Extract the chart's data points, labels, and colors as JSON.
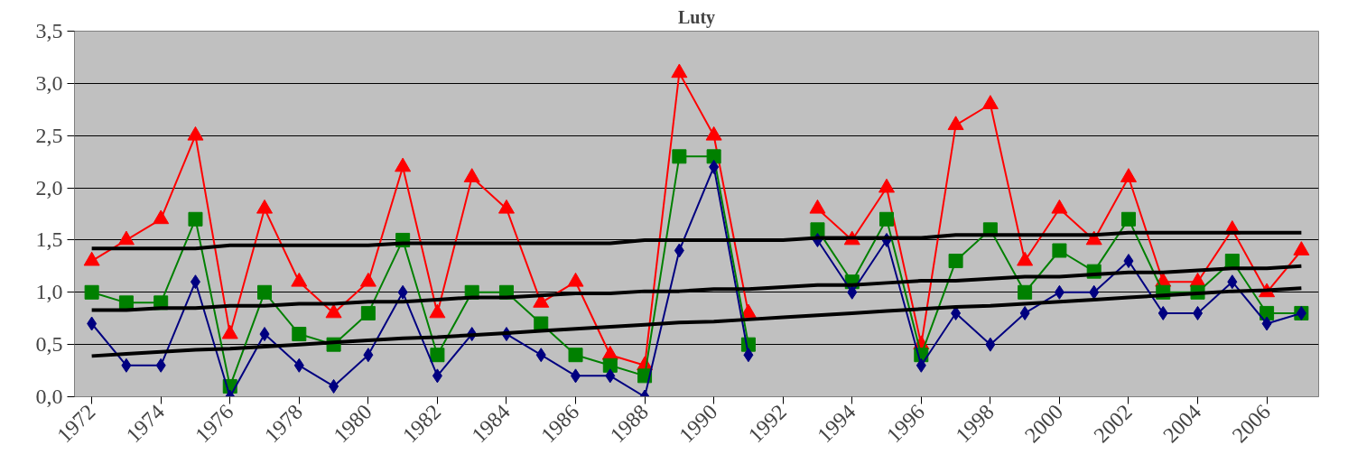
{
  "chart_data": {
    "type": "line",
    "title": "Luty",
    "categories": [
      "1972",
      null,
      "1974",
      null,
      "1976",
      null,
      "1978",
      null,
      "1980",
      null,
      "1982",
      null,
      "1984",
      null,
      "1986",
      null,
      "1988",
      null,
      "1990",
      null,
      "1992",
      null,
      "1994",
      null,
      "1996",
      null,
      "1998",
      null,
      "2000",
      null,
      "2002",
      null,
      "2004",
      null,
      "2006",
      null
    ],
    "series": [
      {
        "color": "#ff0000",
        "marker": "triangle",
        "values": [
          1.3,
          1.5,
          1.7,
          2.5,
          0.6,
          1.8,
          1.1,
          0.8,
          1.1,
          2.2,
          0.8,
          2.1,
          1.8,
          0.9,
          1.1,
          0.4,
          0.3,
          3.1,
          2.5,
          0.8,
          null,
          1.8,
          1.5,
          2.0,
          0.5,
          2.6,
          2.8,
          1.3,
          1.8,
          1.5,
          2.1,
          1.1,
          1.1,
          1.6,
          1.0,
          1.4
        ]
      },
      {
        "color": "#008000",
        "marker": "square",
        "values": [
          1.0,
          0.9,
          0.9,
          1.7,
          0.1,
          1.0,
          0.6,
          0.5,
          0.8,
          1.5,
          0.4,
          1.0,
          1.0,
          0.7,
          0.4,
          0.3,
          0.2,
          2.3,
          2.3,
          0.5,
          null,
          1.6,
          1.1,
          1.7,
          0.4,
          1.3,
          1.6,
          1.0,
          1.4,
          1.2,
          1.7,
          1.0,
          1.0,
          1.3,
          0.8,
          0.8
        ]
      },
      {
        "color": "#000080",
        "marker": "diamond",
        "values": [
          0.7,
          0.3,
          0.3,
          1.1,
          0.0,
          0.6,
          0.3,
          0.1,
          0.4,
          1.0,
          0.2,
          0.6,
          0.6,
          0.4,
          0.2,
          0.2,
          0.0,
          1.4,
          2.2,
          0.4,
          null,
          1.5,
          1.0,
          1.5,
          0.3,
          0.8,
          0.5,
          0.8,
          1.0,
          1.0,
          1.3,
          0.8,
          0.8,
          1.1,
          0.7,
          0.8
        ]
      },
      {
        "color": "#000000",
        "marker": "none",
        "values": [
          1.42,
          1.42,
          1.42,
          1.42,
          1.45,
          1.45,
          1.45,
          1.45,
          1.45,
          1.47,
          1.47,
          1.47,
          1.47,
          1.47,
          1.47,
          1.47,
          1.5,
          1.5,
          1.5,
          1.5,
          1.5,
          1.52,
          1.52,
          1.52,
          1.52,
          1.55,
          1.55,
          1.55,
          1.55,
          1.55,
          1.57,
          1.57,
          1.57,
          1.57,
          1.57,
          1.57
        ]
      },
      {
        "color": "#000000",
        "marker": "none",
        "values": [
          0.83,
          0.83,
          0.85,
          0.85,
          0.87,
          0.87,
          0.89,
          0.89,
          0.91,
          0.91,
          0.93,
          0.95,
          0.95,
          0.97,
          0.99,
          0.99,
          1.01,
          1.01,
          1.03,
          1.03,
          1.05,
          1.07,
          1.07,
          1.09,
          1.11,
          1.11,
          1.13,
          1.15,
          1.15,
          1.17,
          1.19,
          1.19,
          1.21,
          1.23,
          1.23,
          1.25
        ]
      },
      {
        "color": "#000000",
        "marker": "none",
        "values": [
          0.39,
          0.41,
          0.43,
          0.45,
          0.46,
          0.48,
          0.5,
          0.52,
          0.54,
          0.56,
          0.57,
          0.59,
          0.61,
          0.63,
          0.65,
          0.67,
          0.69,
          0.71,
          0.72,
          0.74,
          0.76,
          0.78,
          0.8,
          0.82,
          0.84,
          0.86,
          0.87,
          0.89,
          0.91,
          0.93,
          0.95,
          0.97,
          0.99,
          1.01,
          1.02,
          1.04
        ]
      }
    ],
    "ylim": [
      0,
      3.5
    ],
    "yticks": [
      {
        "value": 0,
        "label": "0,0"
      },
      {
        "value": 0.5,
        "label": "0,5"
      },
      {
        "value": 1,
        "label": "1,0"
      },
      {
        "value": 1.5,
        "label": "1,5"
      },
      {
        "value": 2,
        "label": "2,0"
      },
      {
        "value": 2.5,
        "label": "2,5"
      },
      {
        "value": 3,
        "label": "3,0"
      },
      {
        "value": 3.5,
        "label": "3,5"
      }
    ],
    "grid": "y"
  }
}
